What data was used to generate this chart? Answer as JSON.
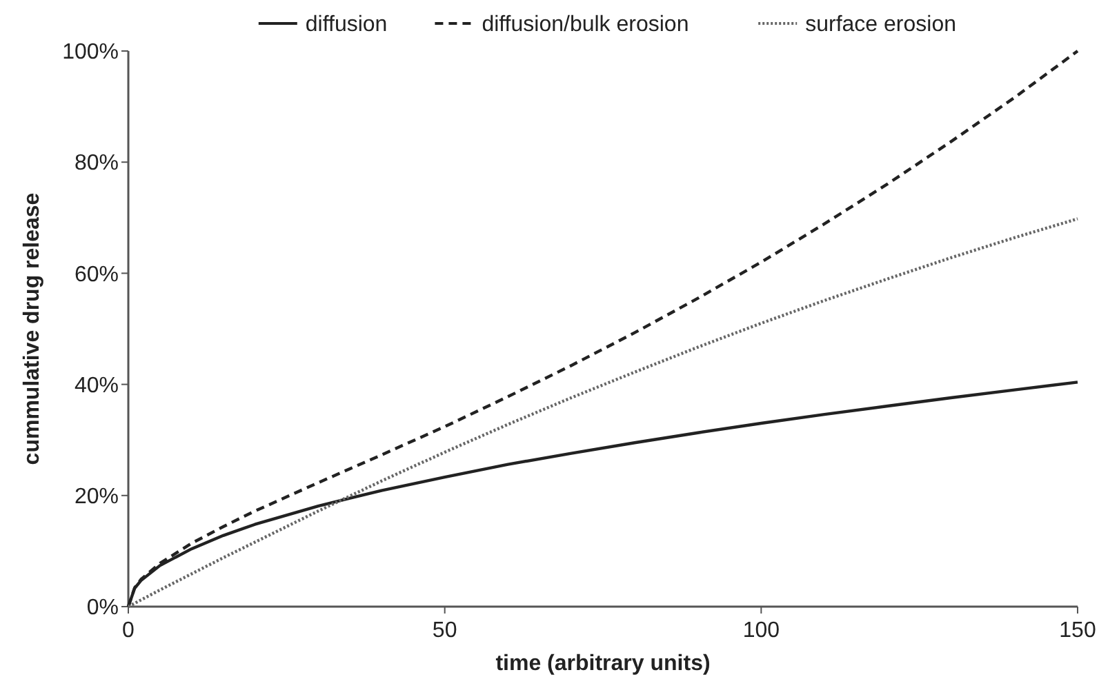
{
  "chart_data": {
    "type": "line",
    "xlabel": "time (arbitrary units)",
    "ylabel": "cummulative drug release",
    "x": [
      0,
      1,
      2,
      5,
      10,
      15,
      20,
      30,
      40,
      50,
      60,
      70,
      80,
      90,
      100,
      110,
      120,
      130,
      140,
      150
    ],
    "xlim": [
      0,
      150
    ],
    "xticks": [
      0,
      50,
      100,
      150
    ],
    "ylim": [
      0,
      100
    ],
    "yticks": [
      {
        "value": 0,
        "label": "0%"
      },
      {
        "value": 20,
        "label": "20%"
      },
      {
        "value": 40,
        "label": "40%"
      },
      {
        "value": 60,
        "label": "60%"
      },
      {
        "value": 80,
        "label": "80%"
      },
      {
        "value": 100,
        "label": "100%"
      }
    ],
    "grid": false,
    "legend": "top",
    "marker": "none",
    "series": [
      {
        "name": "diffusion",
        "color": "#222222",
        "line_style": "solid",
        "values": [
          0,
          3.3,
          4.7,
          7.4,
          10.4,
          12.8,
          14.8,
          18.1,
          20.9,
          23.3,
          25.6,
          27.6,
          29.5,
          31.3,
          33.0,
          34.6,
          36.1,
          37.6,
          39.0,
          40.4
        ]
      },
      {
        "name": "diffusion/bulk erosion",
        "color": "#222222",
        "line_style": "dashed",
        "values": [
          0,
          3.4,
          4.9,
          7.8,
          11.4,
          14.4,
          17.2,
          22.3,
          27.3,
          32.4,
          37.8,
          43.4,
          49.3,
          55.5,
          62,
          68.9,
          76.1,
          83.7,
          91.6,
          100
        ]
      },
      {
        "name": "surface erosion",
        "color": "#666666",
        "line_style": "dotted",
        "values": [
          0,
          0.6,
          1.2,
          3.0,
          5.9,
          8.8,
          11.6,
          17.2,
          22.6,
          27.8,
          32.8,
          37.6,
          42.2,
          46.7,
          51,
          55.1,
          59.0,
          62.8,
          66.4,
          69.8
        ]
      }
    ]
  }
}
